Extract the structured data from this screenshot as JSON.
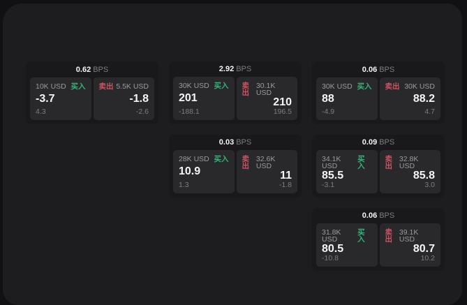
{
  "window": {
    "buy_label": "买入",
    "sell_label": "卖出",
    "bps_suffix": "BPS"
  },
  "colors": {
    "page_bg": "#111113",
    "panel_bg": "#1d1d1f",
    "card_bg": "#19191b",
    "tile_bg": "#29292c",
    "buy_green": "#33b377",
    "sell_red": "#cc5462",
    "value_white": "#f5f5f5",
    "muted_gray": "#9a9a9f",
    "faint_gray": "#7d7d82"
  },
  "cards": [
    {
      "bps": "0.62",
      "buy": {
        "size": "10K USD",
        "value": "-3.7",
        "delta": "4.3"
      },
      "sell": {
        "size": "5.5K USD",
        "value": "-1.8",
        "delta": "-2.6"
      }
    },
    {
      "bps": "2.92",
      "buy": {
        "size": "30K USD",
        "value": "201",
        "delta": "-188.1"
      },
      "sell": {
        "size": "30.1K USD",
        "value": "210",
        "delta": "196.5"
      }
    },
    {
      "bps": "0.06",
      "buy": {
        "size": "30K USD",
        "value": "88",
        "delta": "-4.9"
      },
      "sell": {
        "size": "30K USD",
        "value": "88.2",
        "delta": "4.7"
      }
    },
    {
      "bps": "0.03",
      "buy": {
        "size": "28K USD",
        "value": "10.9",
        "delta": "1.3"
      },
      "sell": {
        "size": "32.6K USD",
        "value": "11",
        "delta": "-1.8"
      }
    },
    {
      "bps": "0.09",
      "buy": {
        "size": "34.1K USD",
        "value": "85.5",
        "delta": "-3.1"
      },
      "sell": {
        "size": "32.8K USD",
        "value": "85.8",
        "delta": "3.0"
      }
    },
    {
      "bps": "0.06",
      "buy": {
        "size": "31.8K USD",
        "value": "80.5",
        "delta": "-10.8"
      },
      "sell": {
        "size": "39.1K USD",
        "value": "80.7",
        "delta": "10.2"
      }
    }
  ]
}
